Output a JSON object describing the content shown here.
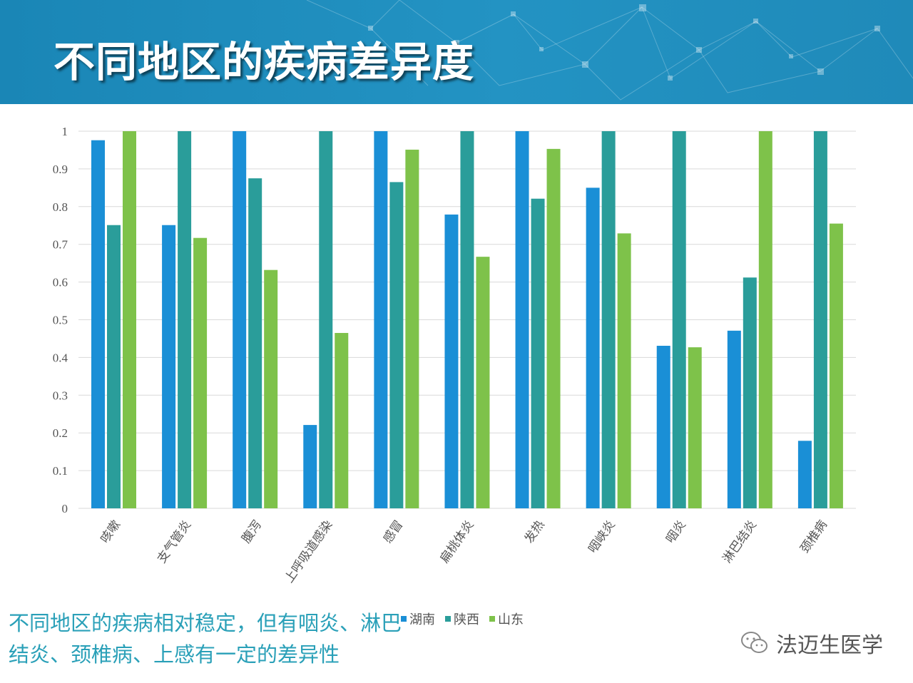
{
  "header": {
    "title": "不同地区的疾病差异度"
  },
  "caption": {
    "line1": "不同地区的疾病相对稳定，但有咽炎、淋巴",
    "line2": "结炎、颈椎病、上感有一定的差异性"
  },
  "brand": {
    "name": "法迈生医学",
    "icon": "wechat-icon"
  },
  "colors": {
    "hunan": "#1a8fd6",
    "shaanxi": "#2a9d9a",
    "shandong": "#7ec24a",
    "grid": "#d9d9d9",
    "header": "#1f8ab9"
  },
  "chart_data": {
    "type": "bar",
    "categories": [
      "咳嗽",
      "支气管炎",
      "腹泻",
      "上呼吸道感染",
      "感冒",
      "扁桃体炎",
      "发热",
      "咽峡炎",
      "咽炎",
      "淋巴结炎",
      "颈椎病"
    ],
    "series": [
      {
        "name": "湖南",
        "values": [
          0.976,
          0.751,
          1.0,
          0.221,
          1.0,
          0.779,
          1.0,
          0.85,
          0.431,
          0.471,
          0.179
        ]
      },
      {
        "name": "陕西",
        "values": [
          0.751,
          1.0,
          0.875,
          1.0,
          0.865,
          1.0,
          0.821,
          1.0,
          1.0,
          0.612,
          1.0
        ]
      },
      {
        "name": "山东",
        "values": [
          1.0,
          0.717,
          0.632,
          0.465,
          0.951,
          0.667,
          0.953,
          0.729,
          0.427,
          1.0,
          0.755
        ]
      }
    ],
    "yticks": [
      "0",
      "0.1",
      "0.2",
      "0.3",
      "0.4",
      "0.5",
      "0.6",
      "0.7",
      "0.8",
      "0.9",
      "1"
    ],
    "ylim": [
      0,
      1
    ],
    "grid": true,
    "legend": "bottom"
  }
}
